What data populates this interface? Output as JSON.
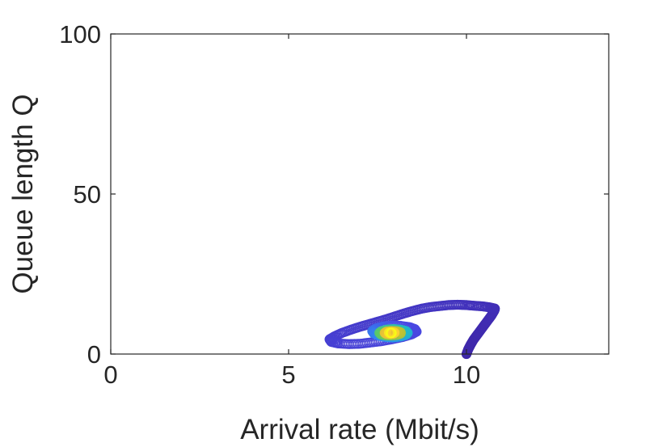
{
  "chart_data": {
    "type": "scatter",
    "title": "",
    "xlabel": "Arrival rate (Mbit/s)",
    "ylabel": "Queue length Q",
    "xlim": [
      0,
      14
    ],
    "ylim": [
      0,
      100
    ],
    "xticks": [
      0,
      5,
      10
    ],
    "yticks": [
      0,
      50,
      100
    ],
    "xtick_labels": [
      "0",
      "5",
      "10"
    ],
    "ytick_labels": [
      "0",
      "50",
      "100"
    ],
    "grid": false,
    "legend": "none",
    "marker": "open-circle",
    "colormap": [
      "#3e26a8",
      "#4a4be6",
      "#2f8cf0",
      "#1fb8c9",
      "#5ec962",
      "#c5c130",
      "#f9c43a",
      "#f9fb15"
    ],
    "trajectory": [
      [
        10.0,
        0.0
      ],
      [
        10.05,
        1.5
      ],
      [
        10.12,
        3.0
      ],
      [
        10.2,
        4.5
      ],
      [
        10.3,
        6.0
      ],
      [
        10.4,
        7.5
      ],
      [
        10.5,
        9.0
      ],
      [
        10.6,
        10.5
      ],
      [
        10.7,
        12.0
      ],
      [
        10.78,
        13.5
      ],
      [
        10.8,
        14.2
      ],
      [
        10.65,
        14.6
      ],
      [
        10.45,
        14.9
      ],
      [
        10.2,
        15.1
      ],
      [
        10.0,
        15.3
      ],
      [
        9.75,
        15.4
      ],
      [
        9.5,
        15.3
      ],
      [
        9.25,
        15.0
      ],
      [
        9.0,
        14.7
      ],
      [
        8.75,
        14.2
      ],
      [
        8.5,
        13.5
      ],
      [
        8.25,
        12.7
      ],
      [
        8.0,
        11.8
      ],
      [
        7.75,
        10.9
      ],
      [
        7.5,
        10.1
      ],
      [
        7.25,
        9.3
      ],
      [
        7.0,
        8.5
      ],
      [
        6.75,
        7.6
      ],
      [
        6.5,
        6.6
      ],
      [
        6.3,
        5.6
      ],
      [
        6.15,
        4.6
      ],
      [
        6.2,
        3.8
      ],
      [
        6.4,
        3.3
      ],
      [
        6.7,
        3.1
      ],
      [
        7.0,
        3.2
      ],
      [
        7.3,
        3.6
      ],
      [
        7.6,
        4.0
      ],
      [
        7.9,
        4.6
      ],
      [
        8.2,
        5.3
      ],
      [
        8.45,
        6.1
      ],
      [
        8.6,
        7.0
      ],
      [
        8.55,
        7.8
      ],
      [
        8.4,
        8.4
      ],
      [
        8.15,
        8.8
      ],
      [
        7.9,
        8.9
      ],
      [
        7.65,
        8.6
      ],
      [
        7.45,
        8.0
      ],
      [
        7.35,
        7.2
      ],
      [
        7.4,
        6.4
      ],
      [
        7.55,
        5.7
      ],
      [
        7.75,
        5.3
      ],
      [
        7.95,
        5.2
      ],
      [
        8.15,
        5.5
      ],
      [
        8.3,
        6.0
      ],
      [
        8.35,
        6.6
      ],
      [
        8.3,
        7.2
      ],
      [
        8.15,
        7.6
      ],
      [
        7.95,
        7.8
      ],
      [
        7.75,
        7.6
      ],
      [
        7.6,
        7.1
      ],
      [
        7.55,
        6.6
      ],
      [
        7.6,
        6.1
      ],
      [
        7.75,
        5.8
      ],
      [
        7.9,
        5.8
      ],
      [
        8.05,
        6.0
      ],
      [
        8.15,
        6.4
      ],
      [
        8.15,
        6.8
      ],
      [
        8.05,
        7.1
      ],
      [
        7.9,
        7.2
      ],
      [
        7.75,
        7.0
      ],
      [
        7.7,
        6.6
      ],
      [
        7.75,
        6.3
      ],
      [
        7.85,
        6.2
      ],
      [
        7.95,
        6.4
      ],
      [
        7.98,
        6.7
      ],
      [
        7.9,
        6.85
      ],
      [
        7.82,
        6.7
      ],
      [
        7.85,
        6.5
      ],
      [
        7.9,
        6.55
      ],
      [
        7.88,
        6.62
      ]
    ]
  }
}
